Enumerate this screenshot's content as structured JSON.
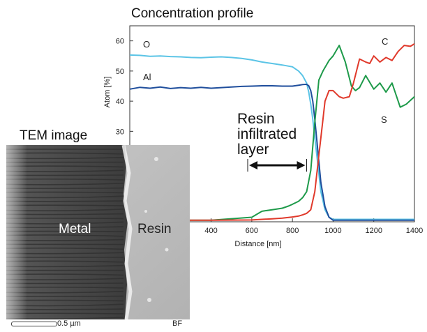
{
  "title": "Concentration profile",
  "tem": {
    "title": "TEM image",
    "metal_label": "Metal",
    "resin_label": "Resin",
    "scale": "0.5 µm",
    "mode": "BF"
  },
  "annotation": "Resin infiltrated layer",
  "chart_data": {
    "type": "line",
    "title": "Concentration profile",
    "xlabel": "Distance [nm]",
    "ylabel": "Atom [%]",
    "xlim": [
      0,
      1400
    ],
    "ylim": [
      0,
      65
    ],
    "x_ticks": [
      400,
      600,
      800,
      1000,
      1200,
      1400
    ],
    "y_ticks": [
      30,
      40,
      50,
      60
    ],
    "grid": false,
    "legend": "inline labels at line ends",
    "annotation_range": [
      580,
      870
    ],
    "series": [
      {
        "name": "O",
        "color": "#5bc4e6",
        "x": [
          0,
          50,
          100,
          150,
          200,
          250,
          300,
          350,
          400,
          450,
          500,
          550,
          600,
          650,
          700,
          750,
          800,
          830,
          850,
          870,
          880,
          890,
          900,
          910,
          920,
          930,
          940,
          960,
          980,
          1000,
          1100,
          1200,
          1300,
          1400
        ],
        "y": [
          55.3,
          55.2,
          54.9,
          55.0,
          54.8,
          54.7,
          54.5,
          54.4,
          54.6,
          54.7,
          54.5,
          54.2,
          53.7,
          53.0,
          52.5,
          52.0,
          51.4,
          50.0,
          48.5,
          46.0,
          43.0,
          39.0,
          34.0,
          28.0,
          22.0,
          16.0,
          10.0,
          4.0,
          1.5,
          0.8,
          0.8,
          0.8,
          0.8,
          0.8
        ]
      },
      {
        "name": "Al",
        "color": "#1f4e9c",
        "x": [
          0,
          50,
          100,
          150,
          200,
          250,
          300,
          350,
          400,
          450,
          500,
          550,
          600,
          650,
          700,
          750,
          800,
          830,
          850,
          870,
          880,
          890,
          900,
          910,
          920,
          930,
          940,
          960,
          980,
          1000,
          1100,
          1200,
          1300,
          1400
        ],
        "y": [
          44.0,
          44.6,
          44.3,
          44.7,
          44.2,
          44.5,
          44.3,
          44.6,
          44.3,
          44.5,
          44.7,
          44.9,
          45.0,
          45.1,
          45.1,
          45.0,
          45.0,
          45.3,
          45.5,
          45.6,
          45.1,
          43.5,
          40.0,
          34.0,
          27.0,
          20.0,
          13.0,
          5.0,
          1.5,
          0.5,
          0.5,
          0.5,
          0.5,
          0.5
        ]
      },
      {
        "name": "C",
        "color": "#e0392b",
        "x": [
          0,
          400,
          600,
          650,
          700,
          750,
          800,
          830,
          850,
          870,
          890,
          910,
          930,
          950,
          960,
          980,
          1000,
          1030,
          1050,
          1080,
          1100,
          1130,
          1160,
          1180,
          1200,
          1230,
          1260,
          1290,
          1320,
          1350,
          1380,
          1400
        ],
        "y": [
          0.5,
          0.5,
          0.6,
          0.8,
          1.0,
          1.2,
          1.6,
          1.9,
          2.3,
          2.8,
          4.0,
          10.0,
          22.0,
          34.0,
          40.0,
          43.5,
          43.5,
          41.5,
          41.0,
          41.5,
          46.0,
          54.0,
          53.0,
          52.5,
          55.0,
          53.0,
          54.5,
          53.5,
          56.5,
          58.5,
          58.2,
          59.0
        ]
      },
      {
        "name": "S",
        "color": "#1e9a4a",
        "x": [
          0,
          400,
          600,
          650,
          700,
          750,
          780,
          800,
          830,
          850,
          870,
          890,
          910,
          930,
          950,
          980,
          1000,
          1030,
          1060,
          1090,
          1110,
          1130,
          1160,
          1200,
          1230,
          1260,
          1290,
          1330,
          1360,
          1400
        ],
        "y": [
          0.5,
          0.5,
          1.5,
          3.5,
          4.0,
          4.5,
          5.2,
          5.8,
          6.8,
          8.0,
          10.0,
          17.0,
          33.0,
          47.0,
          50.0,
          53.5,
          55.0,
          58.5,
          53.0,
          45.0,
          43.5,
          44.5,
          48.5,
          44.0,
          46.0,
          43.0,
          46.0,
          38.0,
          39.0,
          41.5
        ]
      }
    ]
  }
}
